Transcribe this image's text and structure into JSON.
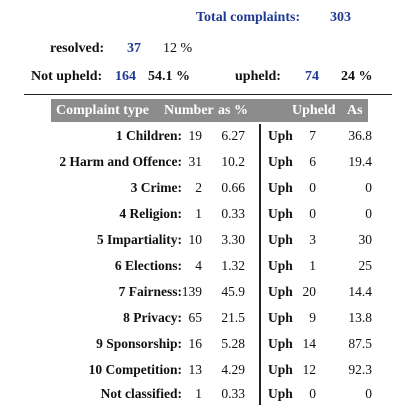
{
  "summary": {
    "total_label": "Total complaints:",
    "total_value": "303",
    "resolved_label": "resolved:",
    "resolved_value": "37",
    "resolved_pct": "12 %",
    "not_upheld_label": "Not upheld:",
    "not_upheld_value": "164",
    "not_upheld_pct": "54.1 %",
    "upheld_label": "upheld:",
    "upheld_value": "74",
    "upheld_pct": "24 %"
  },
  "table": {
    "headers": {
      "type": "Complaint type",
      "number": "Number",
      "as_pct": "as %",
      "upheld": "Upheld",
      "as": "As"
    },
    "rows": [
      {
        "type": "1 Children:",
        "number": "19",
        "pct": "6.27",
        "uph": "Uph",
        "upheld": "7",
        "as": "36.8"
      },
      {
        "type": "2 Harm and Offence:",
        "number": "31",
        "pct": "10.2",
        "uph": "Uph",
        "upheld": "6",
        "as": "19.4"
      },
      {
        "type": "3 Crime:",
        "number": "2",
        "pct": "0.66",
        "uph": "Uph",
        "upheld": "0",
        "as": "0"
      },
      {
        "type": "4 Religion:",
        "number": "1",
        "pct": "0.33",
        "uph": "Uph",
        "upheld": "0",
        "as": "0"
      },
      {
        "type": "5 Impartiality:",
        "number": "10",
        "pct": "3.30",
        "uph": "Uph",
        "upheld": "3",
        "as": "30"
      },
      {
        "type": "6 Elections:",
        "number": "4",
        "pct": "1.32",
        "uph": "Uph",
        "upheld": "1",
        "as": "25"
      },
      {
        "type": "7 Fairness:",
        "number": "139",
        "pct": "45.9",
        "uph": "Uph",
        "upheld": "20",
        "as": "14.4"
      },
      {
        "type": "8 Privacy:",
        "number": "65",
        "pct": "21.5",
        "uph": "Uph",
        "upheld": "9",
        "as": "13.8"
      },
      {
        "type": "9 Sponsorship:",
        "number": "16",
        "pct": "5.28",
        "uph": "Uph",
        "upheld": "14",
        "as": "87.5"
      },
      {
        "type": "10 Competition:",
        "number": "13",
        "pct": "4.29",
        "uph": "Uph",
        "upheld": "12",
        "as": "92.3"
      },
      {
        "type": "Not classified:",
        "number": "1",
        "pct": "0.33",
        "uph": "Uph",
        "upheld": "0",
        "as": "0"
      }
    ]
  }
}
